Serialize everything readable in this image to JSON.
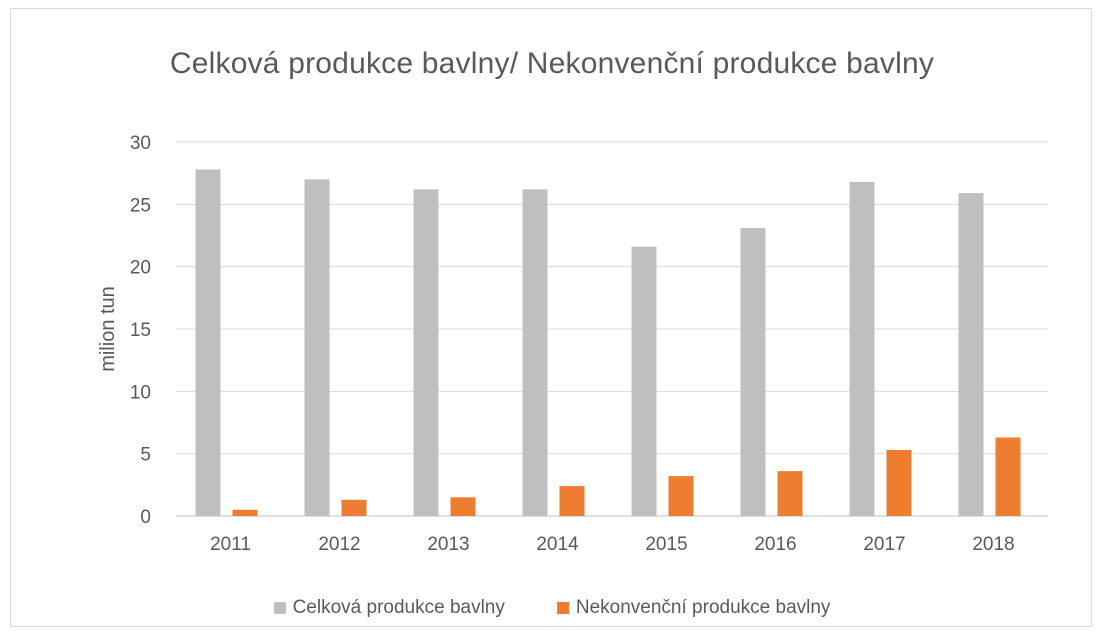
{
  "chart_data": {
    "type": "bar",
    "title": "Celková produkce bavlny/ Nekonvenční produkce bavlny",
    "xlabel": "",
    "ylabel": "milion tun",
    "categories": [
      "2011",
      "2012",
      "2013",
      "2014",
      "2015",
      "2016",
      "2017",
      "2018"
    ],
    "ylim": [
      0,
      30
    ],
    "yticks": [
      0,
      5,
      10,
      15,
      20,
      25,
      30
    ],
    "grid": true,
    "legend_position": "bottom",
    "series": [
      {
        "name": "Celková produkce bavlny",
        "color": "#bfbfbf",
        "values": [
          27.8,
          27.0,
          26.2,
          26.2,
          21.6,
          23.1,
          26.8,
          25.9
        ]
      },
      {
        "name": "Nekonvenční produkce bavlny",
        "color": "#ed7d31",
        "values": [
          0.5,
          1.3,
          1.5,
          2.4,
          3.2,
          3.6,
          5.3,
          6.3
        ]
      }
    ]
  }
}
